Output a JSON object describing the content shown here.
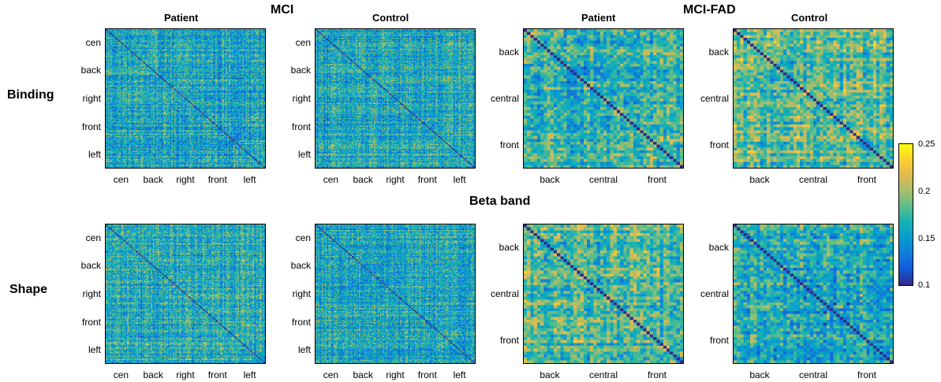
{
  "figure": {
    "group_titles": [
      "MCI",
      "MCI-FAD"
    ],
    "band_title": "Beta band",
    "row_labels": [
      "Binding",
      "Shape"
    ],
    "panel_titles": [
      "Patient",
      "Control",
      "Patient",
      "Control"
    ],
    "colormap": "parula",
    "colorbar": {
      "min": 0.1,
      "max": 0.25,
      "ticks": [
        "0.25",
        "0.2",
        "0.15",
        "0.1"
      ]
    }
  },
  "chart_data": [
    {
      "type": "heatmap",
      "group": "MCI",
      "condition": "Binding",
      "title": "Patient",
      "x_ticks": [
        "cen",
        "back",
        "right",
        "front",
        "left"
      ],
      "y_ticks": [
        "cen",
        "back",
        "right",
        "front",
        "left"
      ],
      "size": 128,
      "value_range": [
        0.1,
        0.25
      ],
      "typical": 0.16,
      "diagonal": 0.1
    },
    {
      "type": "heatmap",
      "group": "MCI",
      "condition": "Binding",
      "title": "Control",
      "x_ticks": [
        "cen",
        "back",
        "right",
        "front",
        "left"
      ],
      "y_ticks": [
        "cen",
        "back",
        "right",
        "front",
        "left"
      ],
      "size": 128,
      "value_range": [
        0.1,
        0.25
      ],
      "typical": 0.16,
      "diagonal": 0.1
    },
    {
      "type": "heatmap",
      "group": "MCI-FAD",
      "condition": "Binding",
      "title": "Patient",
      "x_ticks": [
        "back",
        "central",
        "front"
      ],
      "y_ticks": [
        "back",
        "central",
        "front"
      ],
      "size": 48,
      "value_range": [
        0.1,
        0.25
      ],
      "typical": 0.17,
      "diagonal": 0.1
    },
    {
      "type": "heatmap",
      "group": "MCI-FAD",
      "condition": "Binding",
      "title": "Control",
      "x_ticks": [
        "back",
        "central",
        "front"
      ],
      "y_ticks": [
        "back",
        "central",
        "front"
      ],
      "size": 48,
      "value_range": [
        0.1,
        0.25
      ],
      "typical": 0.18,
      "diagonal": 0.1
    },
    {
      "type": "heatmap",
      "group": "MCI",
      "condition": "Shape",
      "title": "",
      "x_ticks": [
        "cen",
        "back",
        "right",
        "front",
        "left"
      ],
      "y_ticks": [
        "cen",
        "back",
        "right",
        "front",
        "left"
      ],
      "size": 128,
      "value_range": [
        0.1,
        0.25
      ],
      "typical": 0.165,
      "diagonal": 0.1
    },
    {
      "type": "heatmap",
      "group": "MCI",
      "condition": "Shape",
      "title": "",
      "x_ticks": [
        "cen",
        "back",
        "right",
        "front",
        "left"
      ],
      "y_ticks": [
        "cen",
        "back",
        "right",
        "front",
        "left"
      ],
      "size": 128,
      "value_range": [
        0.1,
        0.25
      ],
      "typical": 0.16,
      "diagonal": 0.1
    },
    {
      "type": "heatmap",
      "group": "MCI-FAD",
      "condition": "Shape",
      "title": "",
      "x_ticks": [
        "back",
        "central",
        "front"
      ],
      "y_ticks": [
        "back",
        "central",
        "front"
      ],
      "size": 48,
      "value_range": [
        0.1,
        0.25
      ],
      "typical": 0.175,
      "diagonal": 0.1
    },
    {
      "type": "heatmap",
      "group": "MCI-FAD",
      "condition": "Shape",
      "title": "",
      "x_ticks": [
        "back",
        "central",
        "front"
      ],
      "y_ticks": [
        "back",
        "central",
        "front"
      ],
      "size": 48,
      "value_range": [
        0.1,
        0.25
      ],
      "typical": 0.16,
      "diagonal": 0.1
    }
  ]
}
